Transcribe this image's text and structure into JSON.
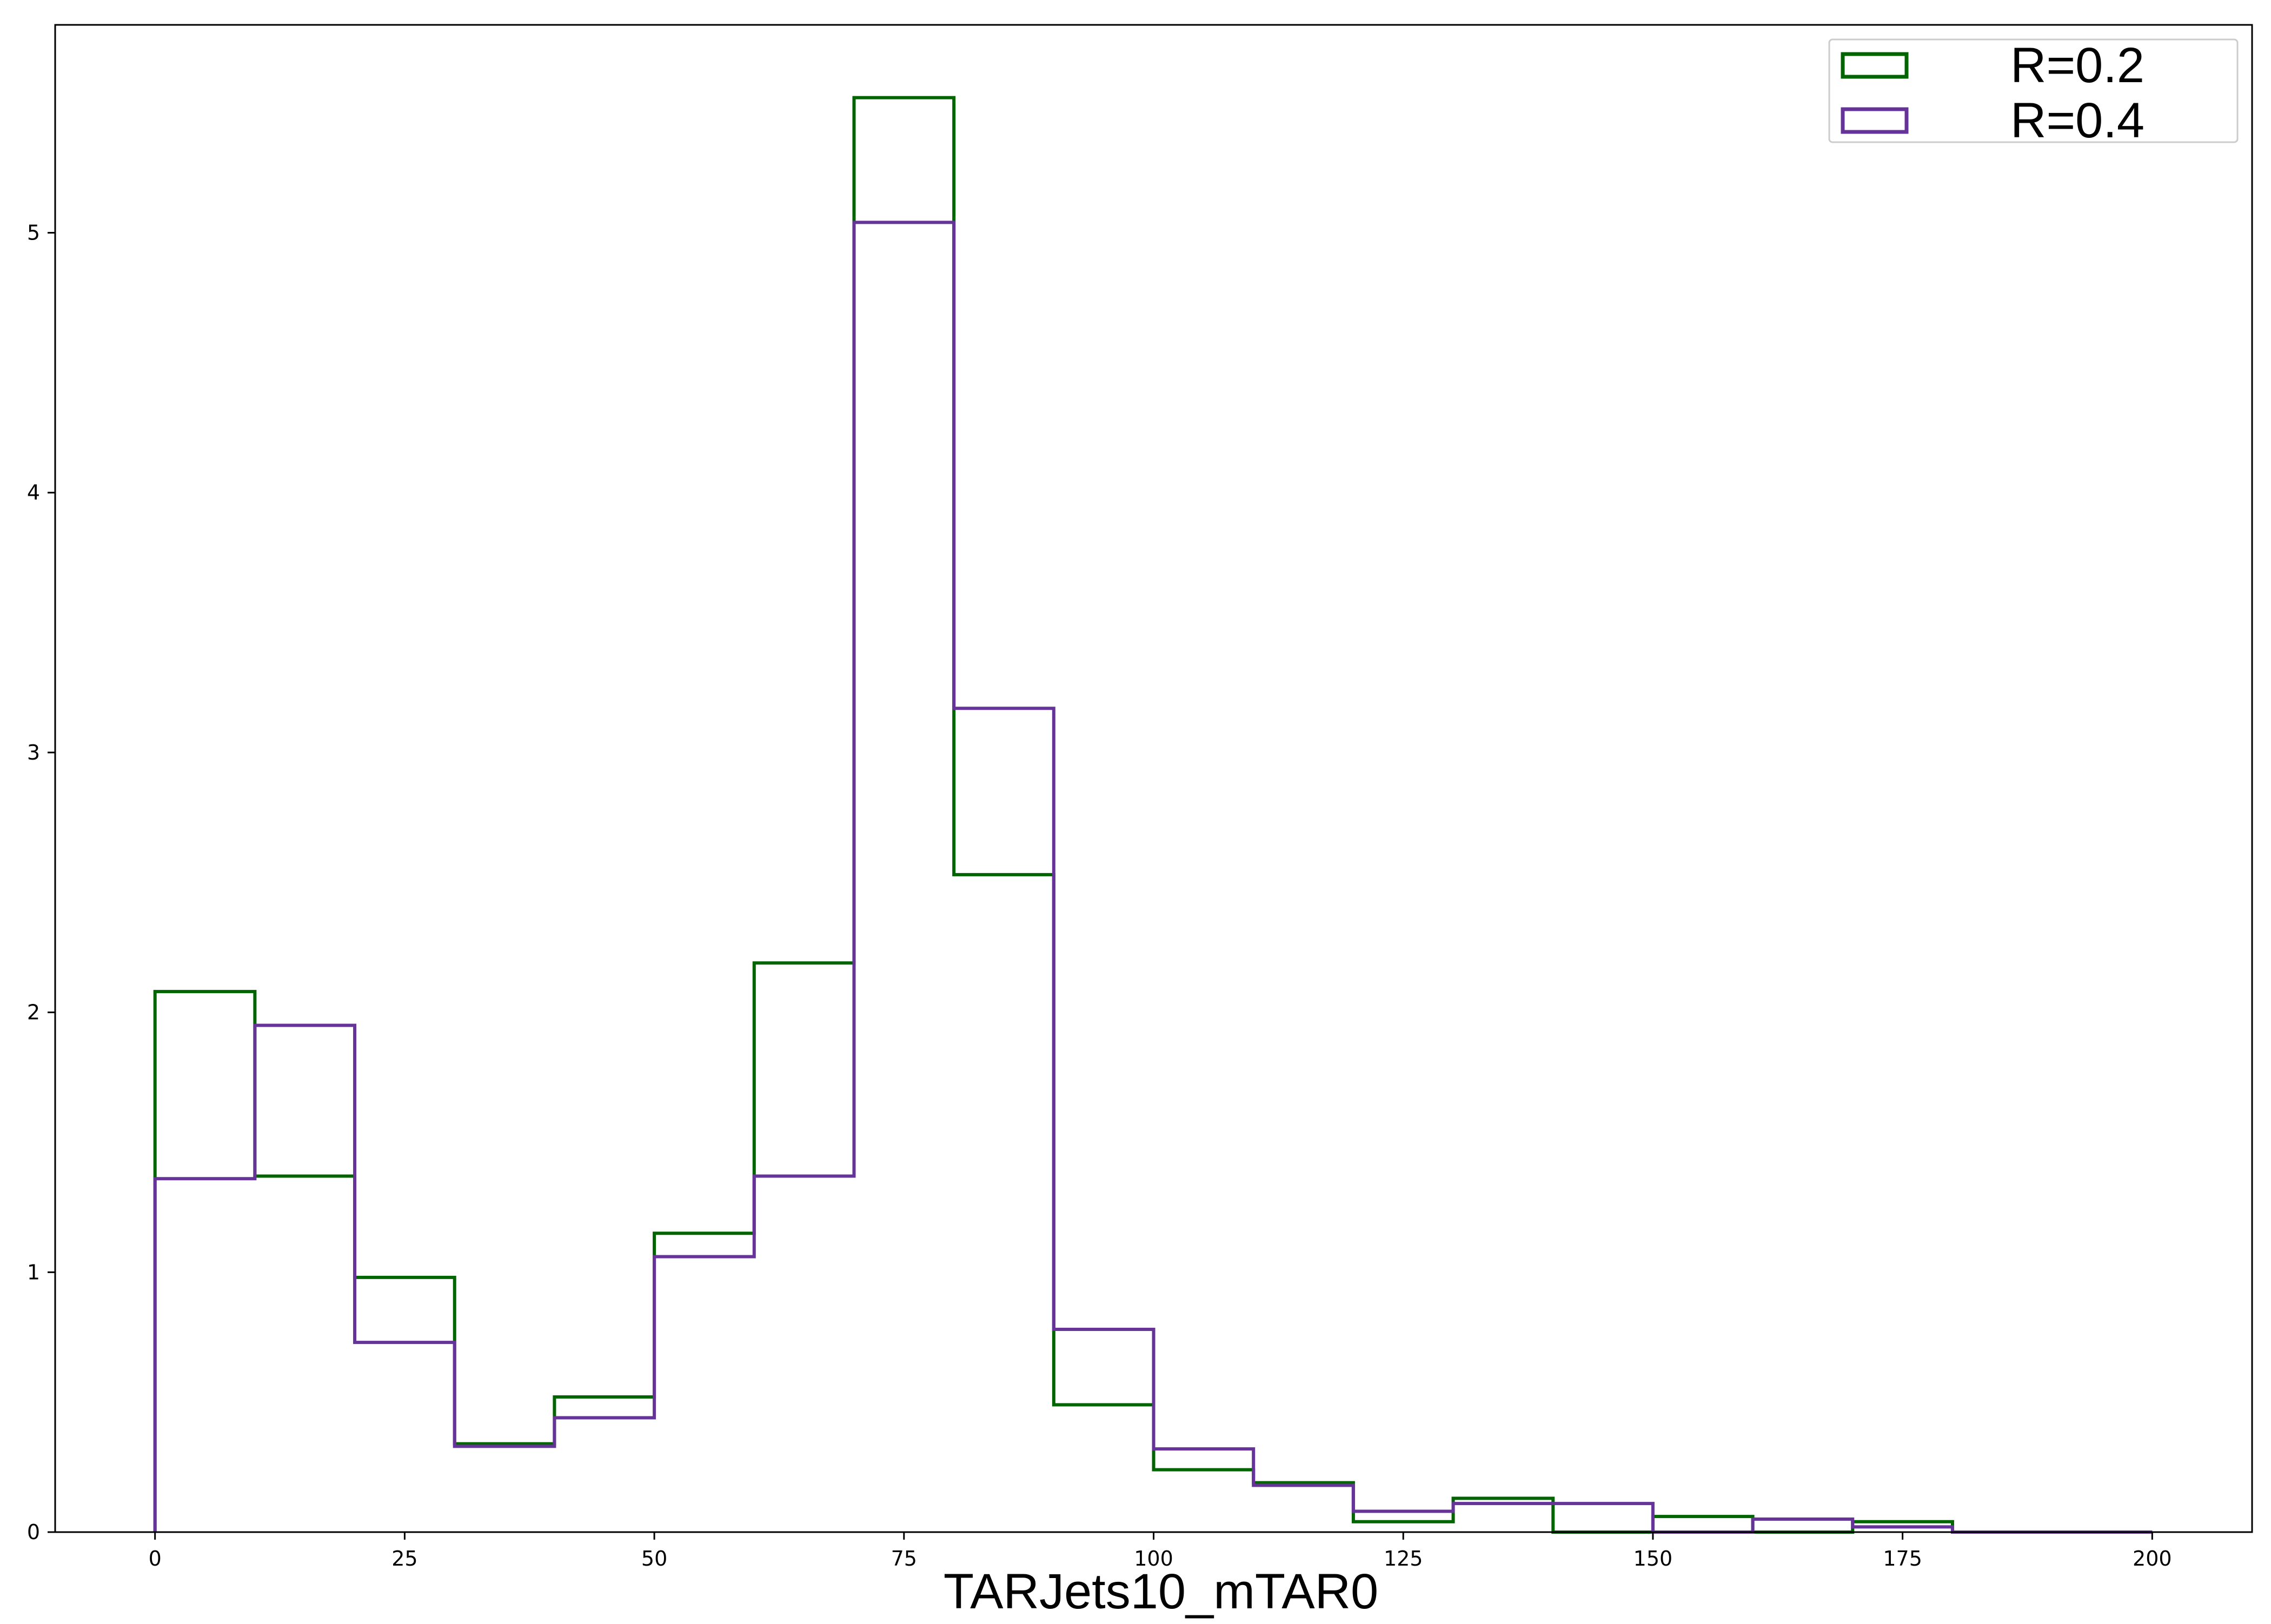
{
  "chart_data": {
    "type": "histogram-step",
    "xlabel": "TARJets10_mTAR0",
    "ylabel": "",
    "title": "",
    "xlim": [
      -10,
      210
    ],
    "ylim": [
      0,
      5.8
    ],
    "xticks": [
      0,
      25,
      50,
      75,
      100,
      125,
      150,
      175,
      200
    ],
    "yticks": [
      0,
      1,
      2,
      3,
      4,
      5
    ],
    "grid": false,
    "legend_position": "top-right",
    "bin_edges": [
      0,
      10,
      20,
      30,
      40,
      50,
      60,
      70,
      80,
      90,
      100,
      110,
      120,
      130,
      140,
      150,
      160,
      170,
      180,
      190,
      200
    ],
    "series": [
      {
        "name": "R=0.2",
        "color": "#006400",
        "values": [
          2.08,
          1.37,
          0.98,
          0.34,
          0.52,
          1.15,
          2.19,
          5.52,
          2.53,
          0.49,
          0.24,
          0.19,
          0.04,
          0.13,
          0.0,
          0.06,
          0.0,
          0.04,
          0.0,
          0.0
        ]
      },
      {
        "name": "R=0.4",
        "color": "#663399",
        "values": [
          1.36,
          1.95,
          0.73,
          0.33,
          0.44,
          1.06,
          1.37,
          5.04,
          3.17,
          0.78,
          0.32,
          0.18,
          0.08,
          0.11,
          0.11,
          0.0,
          0.05,
          0.02,
          0.0,
          0.0
        ]
      }
    ]
  }
}
